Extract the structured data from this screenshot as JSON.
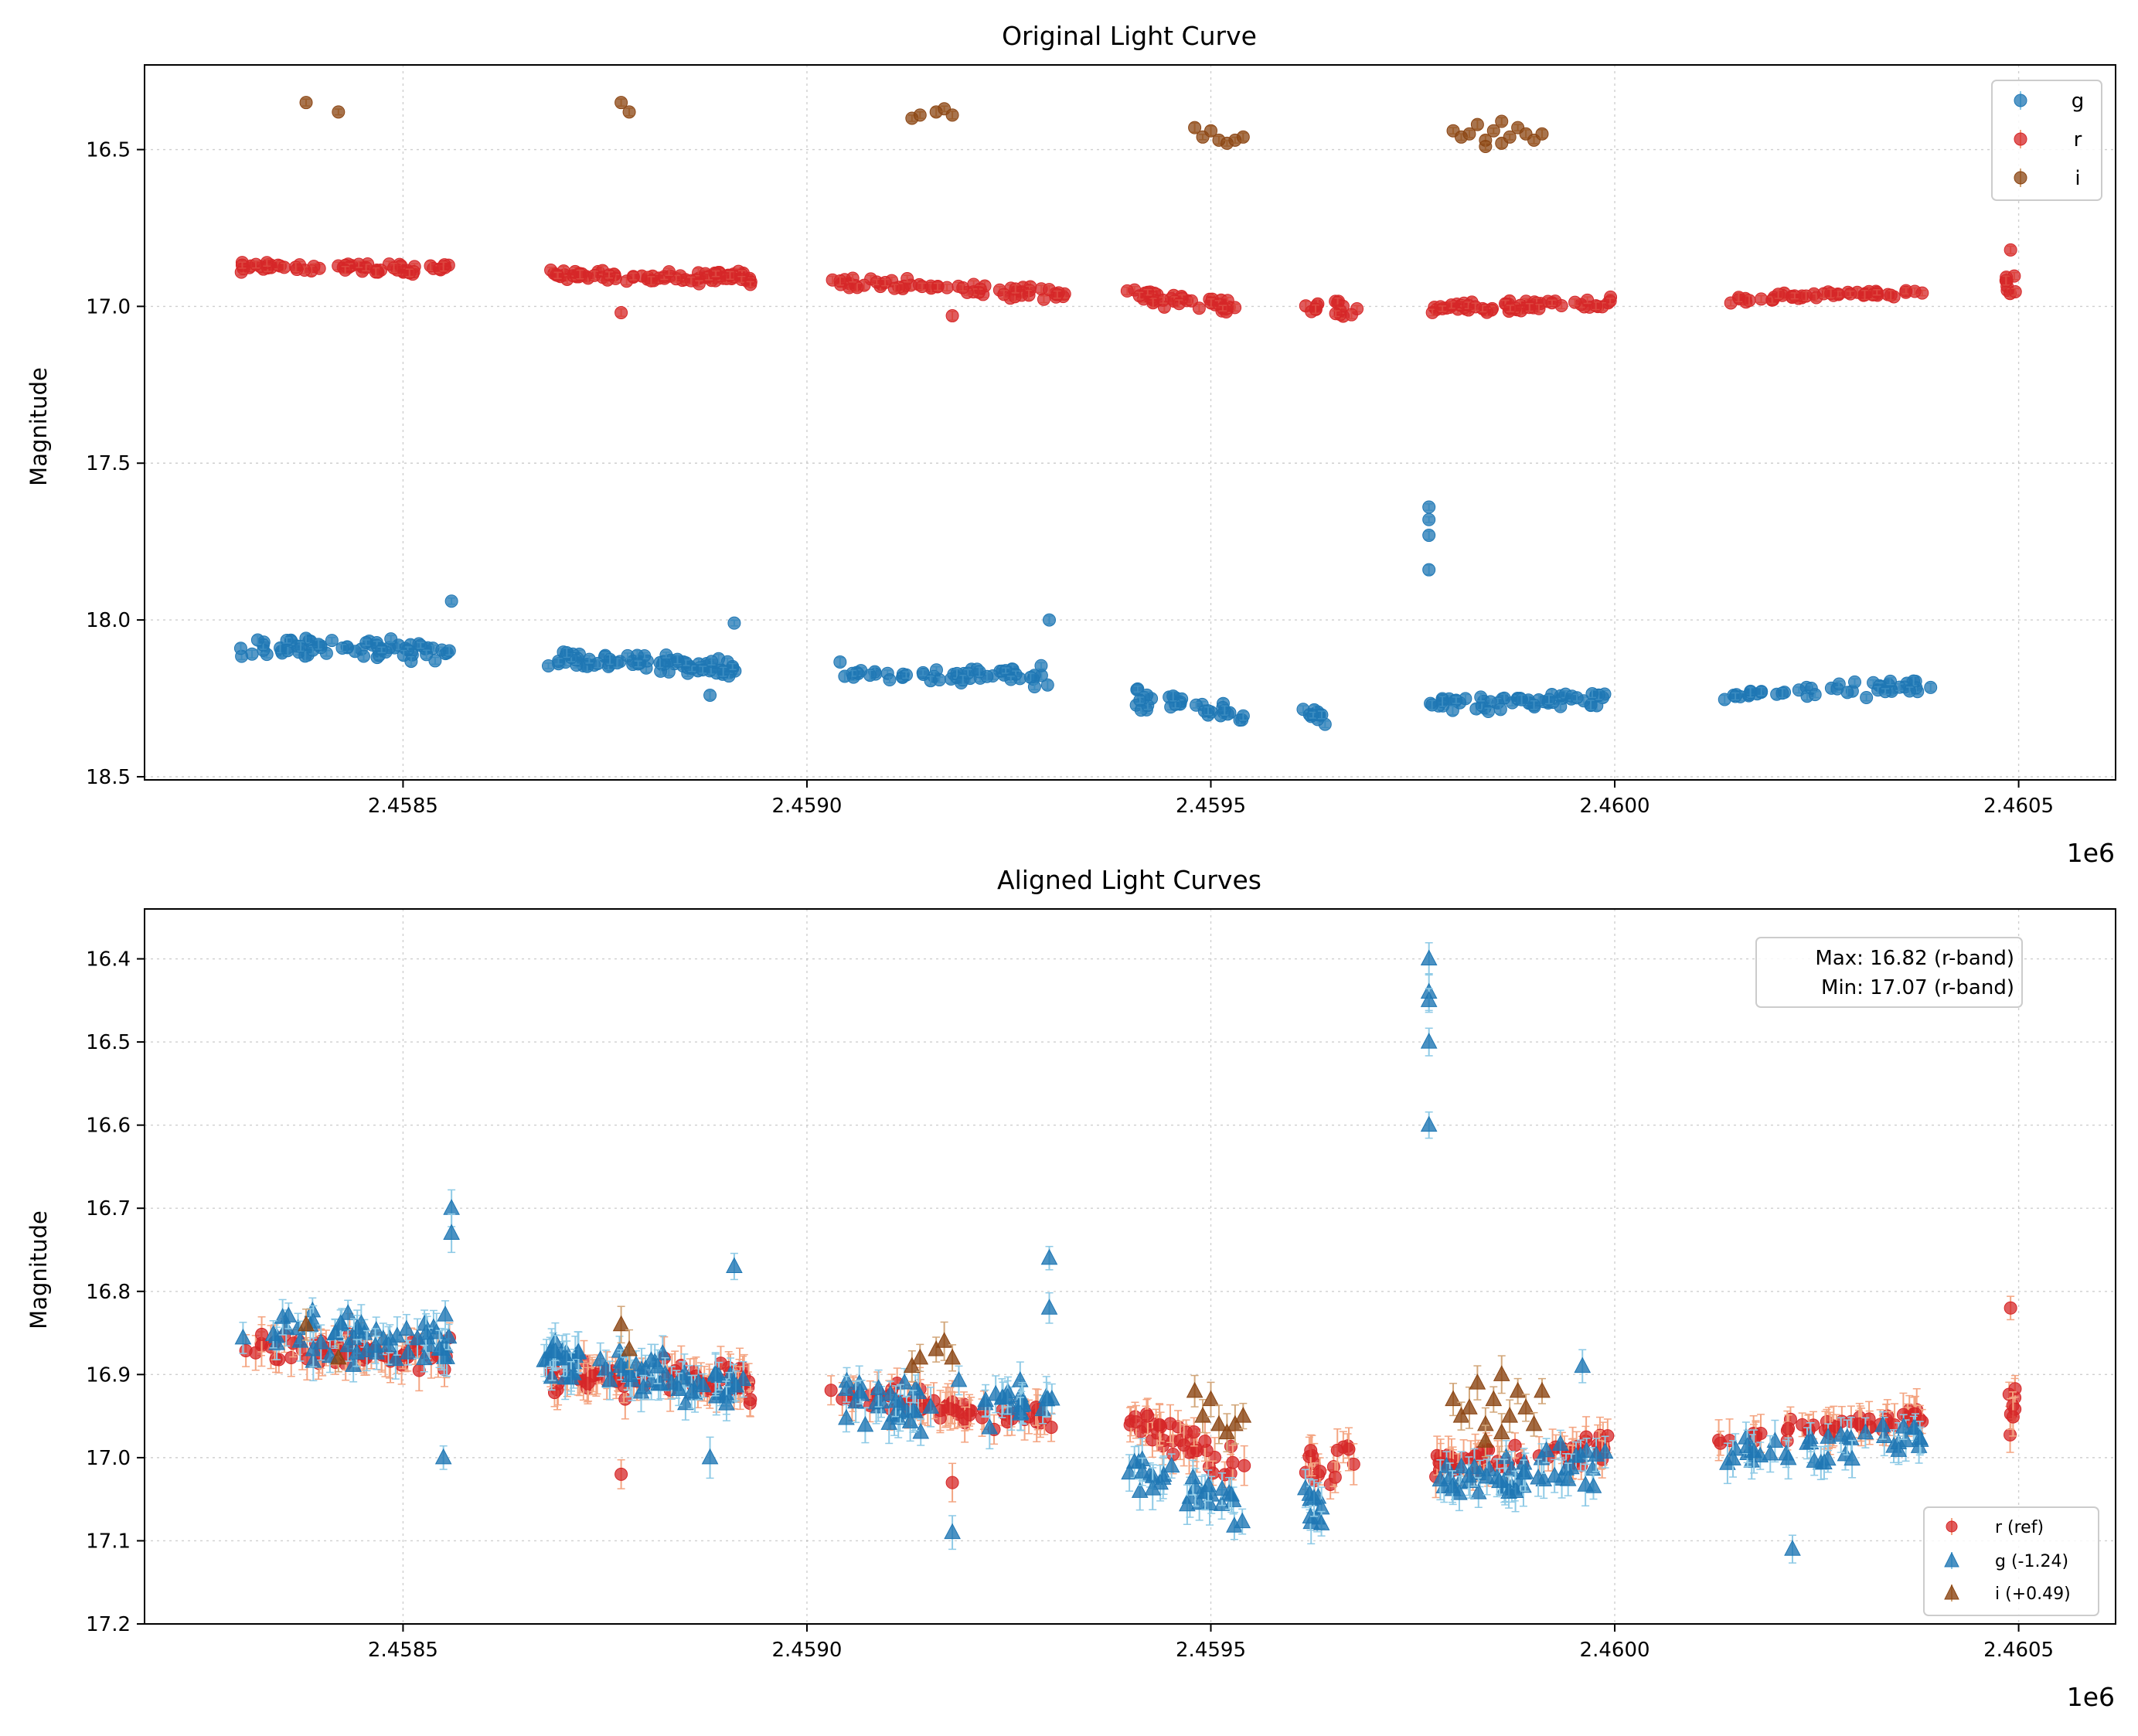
{
  "chart_data": [
    {
      "type": "scatter",
      "title": "Original Light Curve",
      "xlabel": "",
      "ylabel": "Magnitude",
      "x_offset_label": "1e6",
      "xlim": [
        2.45818,
        2.46062
      ],
      "ylim": [
        18.51,
        16.23
      ],
      "y_inverted": true,
      "grid": true,
      "xticks": [
        2.4585,
        2.459,
        2.4595,
        2.46,
        2.4605
      ],
      "xtick_labels": [
        "2.4585",
        "2.4590",
        "2.4595",
        "2.4600",
        "2.4605"
      ],
      "yticks": [
        16.5,
        17.0,
        17.5,
        18.0,
        18.5
      ],
      "ytick_labels": [
        "16.5",
        "17.0",
        "17.5",
        "18.0",
        "18.5"
      ],
      "legend_position": "upper right",
      "series": [
        {
          "name": "g",
          "color": "#1f77b4",
          "errcolor": "#8ecae6",
          "marker": "circle",
          "clusters": [
            {
              "x0": 2.4583,
              "x1": 2.45856,
              "n": 70,
              "y0": 18.08,
              "y1": 18.1,
              "spread": 0.05
            },
            {
              "x0": 2.45868,
              "x1": 2.45892,
              "n": 80,
              "y0": 18.12,
              "y1": 18.16,
              "spread": 0.04
            },
            {
              "x0": 2.45904,
              "x1": 2.4593,
              "n": 55,
              "y0": 18.17,
              "y1": 18.18,
              "spread": 0.05
            },
            {
              "x0": 2.4594,
              "x1": 2.45954,
              "n": 35,
              "y0": 18.25,
              "y1": 18.3,
              "spread": 0.05
            },
            {
              "x0": 2.45962,
              "x1": 2.45964,
              "n": 12,
              "y0": 18.3,
              "y1": 18.3,
              "spread": 0.05
            },
            {
              "x0": 2.45977,
              "x1": 2.45999,
              "n": 60,
              "y0": 18.27,
              "y1": 18.25,
              "spread": 0.04
            },
            {
              "x0": 2.46014,
              "x1": 2.4604,
              "n": 45,
              "y0": 18.24,
              "y1": 18.21,
              "spread": 0.04
            }
          ],
          "extra": [
            [
              2.45977,
              17.64
            ],
            [
              2.45977,
              17.68
            ],
            [
              2.45977,
              17.73
            ],
            [
              2.45977,
              17.84
            ],
            [
              2.45856,
              17.94
            ],
            [
              2.4593,
              18.0
            ],
            [
              2.45891,
              18.01
            ],
            [
              2.45888,
              18.24
            ]
          ]
        },
        {
          "name": "r",
          "color": "#d62728",
          "errcolor": "#f4a582",
          "marker": "circle",
          "clusters": [
            {
              "x0": 2.4583,
              "x1": 2.45856,
              "n": 65,
              "y0": 16.87,
              "y1": 16.88,
              "spread": 0.03
            },
            {
              "x0": 2.45868,
              "x1": 2.45893,
              "n": 80,
              "y0": 16.9,
              "y1": 16.91,
              "spread": 0.03
            },
            {
              "x0": 2.45903,
              "x1": 2.45932,
              "n": 60,
              "y0": 16.92,
              "y1": 16.96,
              "spread": 0.03
            },
            {
              "x0": 2.4594,
              "x1": 2.45954,
              "n": 40,
              "y0": 16.96,
              "y1": 17.01,
              "spread": 0.03
            },
            {
              "x0": 2.45962,
              "x1": 2.45968,
              "n": 16,
              "y0": 17.01,
              "y1": 17.0,
              "spread": 0.04
            },
            {
              "x0": 2.45977,
              "x1": 2.46,
              "n": 60,
              "y0": 17.01,
              "y1": 16.99,
              "spread": 0.03
            },
            {
              "x0": 2.46013,
              "x1": 2.46039,
              "n": 50,
              "y0": 16.98,
              "y1": 16.95,
              "spread": 0.02
            },
            {
              "x0": 2.46049,
              "x1": 2.46049,
              "n": 8,
              "y0": 16.93,
              "y1": 16.93,
              "spread": 0.05
            }
          ],
          "extra": [
            [
              2.46049,
              16.82
            ],
            [
              2.45877,
              17.02
            ],
            [
              2.45918,
              17.03
            ],
            [
              2.45893,
              16.93
            ]
          ]
        },
        {
          "name": "i",
          "color": "#8b4513",
          "errcolor": "#d2a679",
          "marker": "circle",
          "clusters": [],
          "extra": [
            [
              2.45838,
              16.35
            ],
            [
              2.45842,
              16.38
            ],
            [
              2.45877,
              16.35
            ],
            [
              2.45878,
              16.38
            ],
            [
              2.45913,
              16.4
            ],
            [
              2.45914,
              16.39
            ],
            [
              2.45916,
              16.38
            ],
            [
              2.45917,
              16.37
            ],
            [
              2.45918,
              16.39
            ],
            [
              2.45948,
              16.43
            ],
            [
              2.45949,
              16.46
            ],
            [
              2.4595,
              16.44
            ],
            [
              2.45951,
              16.47
            ],
            [
              2.45952,
              16.48
            ],
            [
              2.45953,
              16.47
            ],
            [
              2.45954,
              16.46
            ],
            [
              2.4598,
              16.44
            ],
            [
              2.45981,
              16.46
            ],
            [
              2.45982,
              16.45
            ],
            [
              2.45983,
              16.42
            ],
            [
              2.45984,
              16.47
            ],
            [
              2.45985,
              16.44
            ],
            [
              2.45986,
              16.48
            ],
            [
              2.45987,
              16.46
            ],
            [
              2.45988,
              16.43
            ],
            [
              2.45989,
              16.45
            ],
            [
              2.4599,
              16.47
            ],
            [
              2.45984,
              16.49
            ],
            [
              2.45986,
              16.41
            ],
            [
              2.45991,
              16.45
            ]
          ]
        }
      ]
    },
    {
      "type": "scatter",
      "title": "Aligned Light Curves",
      "xlabel": "",
      "ylabel": "Magnitude",
      "x_offset_label": "1e6",
      "xlim": [
        2.45818,
        2.46062
      ],
      "ylim": [
        17.2,
        16.34
      ],
      "y_inverted": true,
      "grid": true,
      "xticks": [
        2.4585,
        2.459,
        2.4595,
        2.46,
        2.4605
      ],
      "xtick_labels": [
        "2.4585",
        "2.4590",
        "2.4595",
        "2.4600",
        "2.4605"
      ],
      "yticks": [
        16.4,
        16.5,
        16.6,
        16.7,
        16.8,
        16.9,
        17.0,
        17.1,
        17.2
      ],
      "ytick_labels": [
        "16.4",
        "16.5",
        "16.6",
        "16.7",
        "16.8",
        "16.9",
        "17.0",
        "17.1",
        "17.2"
      ],
      "legend_position": "lower right",
      "annotation": {
        "line1": "Max: 16.82 (r-band)",
        "line2": "Min: 17.07 (r-band)",
        "position": "upper right"
      },
      "series": [
        {
          "name": "r (ref)",
          "color": "#d62728",
          "errcolor": "#f4a582",
          "marker": "circle",
          "offset": 0.0,
          "clusters": [
            {
              "x0": 2.4583,
              "x1": 2.45856,
              "n": 65,
              "y0": 16.87,
              "y1": 16.88,
              "spread": 0.03
            },
            {
              "x0": 2.45868,
              "x1": 2.45893,
              "n": 80,
              "y0": 16.9,
              "y1": 16.91,
              "spread": 0.03
            },
            {
              "x0": 2.45903,
              "x1": 2.45932,
              "n": 60,
              "y0": 16.92,
              "y1": 16.96,
              "spread": 0.03
            },
            {
              "x0": 2.4594,
              "x1": 2.45954,
              "n": 40,
              "y0": 16.96,
              "y1": 17.01,
              "spread": 0.03
            },
            {
              "x0": 2.45962,
              "x1": 2.45968,
              "n": 16,
              "y0": 17.01,
              "y1": 17.0,
              "spread": 0.04
            },
            {
              "x0": 2.45977,
              "x1": 2.46,
              "n": 60,
              "y0": 17.01,
              "y1": 16.99,
              "spread": 0.03
            },
            {
              "x0": 2.46013,
              "x1": 2.46039,
              "n": 50,
              "y0": 16.98,
              "y1": 16.95,
              "spread": 0.02
            },
            {
              "x0": 2.46049,
              "x1": 2.46049,
              "n": 8,
              "y0": 16.93,
              "y1": 16.93,
              "spread": 0.05
            }
          ],
          "extra": [
            [
              2.46049,
              16.82
            ],
            [
              2.45877,
              17.02
            ],
            [
              2.45918,
              17.03
            ],
            [
              2.45893,
              16.93
            ]
          ]
        },
        {
          "name": "g (-1.24)",
          "color": "#1f77b4",
          "errcolor": "#8ecae6",
          "marker": "triangle",
          "offset": -1.24,
          "clusters": [
            {
              "x0": 2.4583,
              "x1": 2.45856,
              "n": 55,
              "y0": 16.85,
              "y1": 16.86,
              "spread": 0.05
            },
            {
              "x0": 2.45868,
              "x1": 2.45892,
              "n": 70,
              "y0": 16.88,
              "y1": 16.92,
              "spread": 0.04
            },
            {
              "x0": 2.45904,
              "x1": 2.4593,
              "n": 50,
              "y0": 16.93,
              "y1": 16.94,
              "spread": 0.05
            },
            {
              "x0": 2.4594,
              "x1": 2.45954,
              "n": 30,
              "y0": 17.01,
              "y1": 17.06,
              "spread": 0.05
            },
            {
              "x0": 2.45962,
              "x1": 2.45964,
              "n": 10,
              "y0": 17.06,
              "y1": 17.06,
              "spread": 0.05
            },
            {
              "x0": 2.45977,
              "x1": 2.45999,
              "n": 50,
              "y0": 17.03,
              "y1": 17.01,
              "spread": 0.04
            },
            {
              "x0": 2.46014,
              "x1": 2.4604,
              "n": 40,
              "y0": 17.0,
              "y1": 16.97,
              "spread": 0.04
            }
          ],
          "extra": [
            [
              2.45977,
              16.4
            ],
            [
              2.45977,
              16.44
            ],
            [
              2.45977,
              16.45
            ],
            [
              2.45977,
              16.5
            ],
            [
              2.45977,
              16.6
            ],
            [
              2.45856,
              16.7
            ],
            [
              2.45856,
              16.73
            ],
            [
              2.4593,
              16.76
            ],
            [
              2.45891,
              16.77
            ],
            [
              2.4593,
              16.82
            ],
            [
              2.45888,
              17.0
            ],
            [
              2.45855,
              17.0
            ],
            [
              2.45996,
              16.89
            ],
            [
              2.46022,
              17.11
            ],
            [
              2.45918,
              17.09
            ]
          ]
        },
        {
          "name": "i (+0.49)",
          "color": "#8b4513",
          "errcolor": "#d2a679",
          "marker": "triangle",
          "offset": 0.49,
          "clusters": [],
          "extra": [
            [
              2.45838,
              16.84
            ],
            [
              2.45842,
              16.88
            ],
            [
              2.45877,
              16.84
            ],
            [
              2.45878,
              16.87
            ],
            [
              2.45913,
              16.89
            ],
            [
              2.45914,
              16.88
            ],
            [
              2.45916,
              16.87
            ],
            [
              2.45917,
              16.86
            ],
            [
              2.45918,
              16.88
            ],
            [
              2.45948,
              16.92
            ],
            [
              2.45949,
              16.95
            ],
            [
              2.4595,
              16.93
            ],
            [
              2.45951,
              16.96
            ],
            [
              2.45952,
              16.97
            ],
            [
              2.45953,
              16.96
            ],
            [
              2.45954,
              16.95
            ],
            [
              2.4598,
              16.93
            ],
            [
              2.45981,
              16.95
            ],
            [
              2.45982,
              16.94
            ],
            [
              2.45983,
              16.91
            ],
            [
              2.45984,
              16.96
            ],
            [
              2.45985,
              16.93
            ],
            [
              2.45986,
              16.97
            ],
            [
              2.45987,
              16.95
            ],
            [
              2.45988,
              16.92
            ],
            [
              2.45989,
              16.94
            ],
            [
              2.4599,
              16.96
            ],
            [
              2.45984,
              16.98
            ],
            [
              2.45986,
              16.9
            ],
            [
              2.45991,
              16.92
            ]
          ]
        }
      ]
    }
  ]
}
